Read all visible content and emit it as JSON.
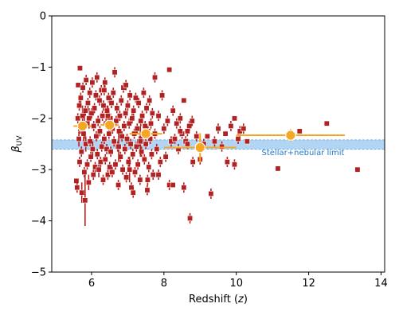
{
  "chart_data": {
    "type": "scatter",
    "xlabel_main": "Redshift (",
    "xlabel_var": "z",
    "xlabel_close": ")",
    "ylabel_main": "β",
    "ylabel_sub": "UV",
    "xlim": [
      4.9,
      14.1
    ],
    "ylim": [
      -5,
      0
    ],
    "xticks": [
      6,
      8,
      10,
      12,
      14
    ],
    "yticks": [
      0,
      -1,
      -2,
      -3,
      -4,
      -5
    ],
    "xtick_labels": [
      "6",
      "8",
      "10",
      "12",
      "14"
    ],
    "ytick_labels": [
      "0",
      "−1",
      "−2",
      "−3",
      "−4",
      "−5"
    ],
    "band": {
      "ymin": -2.6,
      "ymax": -2.42,
      "color": "#9fcaf0",
      "edge": "#5aa3e6"
    },
    "annotation": {
      "text": "Stellar+nebular limit",
      "x": 10.7,
      "y": -2.72,
      "color": "#1f77d0"
    },
    "colors": {
      "individual": "#b22222",
      "binned": "#f5a623"
    },
    "individual_points": [
      [
        5.58,
        -3.22,
        0.05
      ],
      [
        5.6,
        -3.35,
        0.1
      ],
      [
        5.62,
        -2.0,
        0.1
      ],
      [
        5.63,
        -1.35,
        0.05
      ],
      [
        5.65,
        -2.4,
        0.15
      ],
      [
        5.66,
        -1.75,
        0.1
      ],
      [
        5.67,
        -2.85,
        0.1
      ],
      [
        5.68,
        -1.02,
        0.05
      ],
      [
        5.69,
        -2.2,
        0.1
      ],
      [
        5.7,
        -1.6,
        0.1
      ],
      [
        5.72,
        -2.65,
        0.1
      ],
      [
        5.73,
        -3.45,
        0.2
      ],
      [
        5.75,
        -1.95,
        0.2
      ],
      [
        5.76,
        -1.4,
        0.1
      ],
      [
        5.78,
        -2.3,
        0.15
      ],
      [
        5.8,
        -3.05,
        0.1
      ],
      [
        5.82,
        -3.6,
        0.5
      ],
      [
        5.83,
        -1.85,
        0.1
      ],
      [
        5.84,
        -2.5,
        0.15
      ],
      [
        5.85,
        -1.25,
        0.1
      ],
      [
        5.87,
        -2.1,
        0.1
      ],
      [
        5.88,
        -2.9,
        0.1
      ],
      [
        5.9,
        -1.7,
        0.1
      ],
      [
        5.92,
        -3.25,
        0.15
      ],
      [
        5.93,
        -2.0,
        0.2
      ],
      [
        5.95,
        -1.5,
        0.1
      ],
      [
        5.96,
        -2.45,
        0.1
      ],
      [
        5.98,
        -2.75,
        0.1
      ],
      [
        6.0,
        -1.9,
        0.1
      ],
      [
        6.02,
        -1.3,
        0.1
      ],
      [
        6.03,
        -2.6,
        0.15
      ],
      [
        6.05,
        -3.1,
        0.1
      ],
      [
        6.06,
        -2.15,
        0.1
      ],
      [
        6.08,
        -1.8,
        0.1
      ],
      [
        6.1,
        -2.95,
        0.1
      ],
      [
        6.12,
        -1.55,
        0.1
      ],
      [
        6.13,
        -2.35,
        0.1
      ],
      [
        6.15,
        -1.2,
        0.1
      ],
      [
        6.16,
        -2.7,
        0.1
      ],
      [
        6.18,
        -2.05,
        0.1
      ],
      [
        6.2,
        -3.0,
        0.15
      ],
      [
        6.22,
        -1.65,
        0.1
      ],
      [
        6.23,
        -2.25,
        0.1
      ],
      [
        6.25,
        -2.85,
        0.1
      ],
      [
        6.27,
        -1.45,
        0.1
      ],
      [
        6.28,
        -2.55,
        0.1
      ],
      [
        6.3,
        -1.95,
        0.1
      ],
      [
        6.32,
        -3.2,
        0.1
      ],
      [
        6.33,
        -1.75,
        0.1
      ],
      [
        6.35,
        -2.4,
        0.1
      ],
      [
        6.37,
        -1.3,
        0.1
      ],
      [
        6.38,
        -2.8,
        0.1
      ],
      [
        6.4,
        -2.1,
        0.1
      ],
      [
        6.42,
        -2.6,
        0.1
      ],
      [
        6.43,
        -1.85,
        0.1
      ],
      [
        6.45,
        -3.1,
        0.1
      ],
      [
        6.47,
        -1.6,
        0.1
      ],
      [
        6.48,
        -2.3,
        0.1
      ],
      [
        6.5,
        -2.95,
        0.1
      ],
      [
        6.52,
        -2.0,
        0.1
      ],
      [
        6.53,
        -2.65,
        0.1
      ],
      [
        6.55,
        -1.7,
        0.1
      ],
      [
        6.57,
        -3.05,
        0.1
      ],
      [
        6.58,
        -2.2,
        0.1
      ],
      [
        6.6,
        -1.5,
        0.1
      ],
      [
        6.62,
        -2.45,
        0.1
      ],
      [
        6.64,
        -1.1,
        0.1
      ],
      [
        6.66,
        -2.9,
        0.1
      ],
      [
        6.68,
        -2.05,
        0.1
      ],
      [
        6.7,
        -1.8,
        0.1
      ],
      [
        6.72,
        -2.55,
        0.1
      ],
      [
        6.74,
        -3.3,
        0.1
      ],
      [
        6.76,
        -2.25,
        0.1
      ],
      [
        6.78,
        -1.95,
        0.1
      ],
      [
        6.8,
        -2.75,
        0.1
      ],
      [
        6.82,
        -1.65,
        0.1
      ],
      [
        6.84,
        -2.35,
        0.1
      ],
      [
        6.86,
        -3.0,
        0.1
      ],
      [
        6.88,
        -1.4,
        0.1
      ],
      [
        6.9,
        -2.15,
        0.1
      ],
      [
        6.92,
        -2.6,
        0.1
      ],
      [
        6.94,
        -1.9,
        0.1
      ],
      [
        6.96,
        -3.15,
        0.1
      ],
      [
        6.98,
        -2.4,
        0.1
      ],
      [
        7.0,
        -1.75,
        0.1
      ],
      [
        7.02,
        -2.85,
        0.1
      ],
      [
        7.04,
        -2.1,
        0.1
      ],
      [
        7.06,
        -1.55,
        0.1
      ],
      [
        7.08,
        -2.5,
        0.1
      ],
      [
        7.1,
        -3.35,
        0.1
      ],
      [
        7.12,
        -2.0,
        0.1
      ],
      [
        7.14,
        -2.7,
        0.1
      ],
      [
        7.16,
        -1.85,
        0.1
      ],
      [
        7.18,
        -2.3,
        0.1
      ],
      [
        7.2,
        -3.05,
        0.1
      ],
      [
        7.22,
        -1.6,
        0.1
      ],
      [
        7.24,
        -2.55,
        0.1
      ],
      [
        7.26,
        -2.2,
        0.1
      ],
      [
        7.28,
        -2.9,
        0.1
      ],
      [
        7.3,
        -1.7,
        0.1
      ],
      [
        7.32,
        -2.45,
        0.1
      ],
      [
        7.34,
        -3.2,
        0.1
      ],
      [
        7.36,
        -2.05,
        0.1
      ],
      [
        7.38,
        -2.65,
        0.1
      ],
      [
        7.4,
        -1.95,
        0.1
      ],
      [
        7.42,
        -2.35,
        0.1
      ],
      [
        7.44,
        -1.5,
        0.1
      ],
      [
        7.46,
        -2.8,
        0.1
      ],
      [
        7.48,
        -2.15,
        0.1
      ],
      [
        7.5,
        -2.5,
        0.1
      ],
      [
        7.52,
        -1.8,
        0.1
      ],
      [
        7.54,
        -3.4,
        0.1
      ],
      [
        7.56,
        -2.25,
        0.1
      ],
      [
        7.58,
        -2.95,
        0.1
      ],
      [
        7.6,
        -1.65,
        0.1
      ],
      [
        7.62,
        -2.4,
        0.1
      ],
      [
        7.64,
        -2.1,
        0.1
      ],
      [
        7.66,
        -2.7,
        0.1
      ],
      [
        7.68,
        -1.9,
        0.1
      ],
      [
        7.7,
        -3.1,
        0.1
      ],
      [
        7.75,
        -2.3,
        0.1
      ],
      [
        7.8,
        -2.6,
        0.1
      ],
      [
        7.85,
        -1.95,
        0.1
      ],
      [
        7.9,
        -2.85,
        0.1
      ],
      [
        7.95,
        -1.55,
        0.1
      ],
      [
        8.0,
        -2.2,
        0.1
      ],
      [
        8.05,
        -2.75,
        0.1
      ],
      [
        8.1,
        -2.05,
        0.1
      ],
      [
        8.15,
        -3.3,
        0.1
      ],
      [
        8.2,
        -2.45,
        0.1
      ],
      [
        8.25,
        -1.85,
        0.1
      ],
      [
        8.3,
        -2.4,
        0.1
      ],
      [
        8.35,
        -2.1,
        0.1
      ],
      [
        8.4,
        -2.6,
        0.1
      ],
      [
        8.45,
        -2.0,
        0.1
      ],
      [
        8.5,
        -2.3,
        0.1
      ],
      [
        8.55,
        -3.35,
        0.1
      ],
      [
        8.6,
        -2.45,
        0.1
      ],
      [
        8.65,
        -2.25,
        0.1
      ],
      [
        8.7,
        -2.15,
        0.1
      ],
      [
        8.72,
        -3.95,
        0.1
      ],
      [
        8.78,
        -2.05,
        0.1
      ],
      [
        8.8,
        -2.85,
        0.1
      ],
      [
        8.9,
        -2.35,
        0.1
      ],
      [
        9.0,
        -2.8,
        0.1
      ],
      [
        9.1,
        -2.5,
        0.1
      ],
      [
        9.3,
        -3.47,
        0.1
      ],
      [
        9.4,
        -2.45,
        0.1
      ],
      [
        9.5,
        -2.2,
        0.1
      ],
      [
        9.6,
        -2.55,
        0.1
      ],
      [
        9.75,
        -2.85,
        0.1
      ],
      [
        9.85,
        -2.15,
        0.1
      ],
      [
        9.95,
        -2.9,
        0.1
      ],
      [
        10.05,
        -2.4,
        0.1
      ],
      [
        10.1,
        -2.25,
        0.1
      ],
      [
        10.2,
        -2.2,
        0.1
      ],
      [
        11.15,
        -2.98,
        0.05
      ],
      [
        11.75,
        -2.25,
        0.05
      ],
      [
        12.5,
        -2.1,
        0.05
      ],
      [
        13.35,
        -3.0,
        0.05
      ],
      [
        5.8,
        -2.15,
        0.25
      ],
      [
        6.45,
        -1.95,
        0.2
      ],
      [
        6.75,
        -2.55,
        0.3
      ],
      [
        7.35,
        -2.45,
        0.3
      ],
      [
        7.05,
        -3.0,
        0.25
      ],
      [
        8.55,
        -1.65,
        0.05
      ],
      [
        8.15,
        -1.05,
        0.05
      ],
      [
        7.75,
        -1.2,
        0.1
      ],
      [
        6.95,
        -1.35,
        0.1
      ],
      [
        6.35,
        -1.45,
        0.1
      ],
      [
        7.15,
        -3.45,
        0.1
      ],
      [
        7.55,
        -3.2,
        0.1
      ],
      [
        7.85,
        -3.1,
        0.1
      ],
      [
        8.25,
        -3.3,
        0.05
      ],
      [
        8.45,
        -2.25,
        0.1
      ],
      [
        8.65,
        -2.5,
        0.1
      ],
      [
        9.2,
        -2.35,
        0.05
      ],
      [
        9.7,
        -2.3,
        0.05
      ],
      [
        9.95,
        -2.0,
        0.05
      ],
      [
        10.3,
        -2.45,
        0.05
      ]
    ],
    "binned_points": [
      {
        "x": 5.75,
        "y": -2.15,
        "xerr": 0.25,
        "yerr": 0.08
      },
      {
        "x": 6.5,
        "y": -2.13,
        "xerr": 0.25,
        "yerr": 0.08
      },
      {
        "x": 7.5,
        "y": -2.3,
        "xerr": 0.45,
        "yerr": 0.08
      },
      {
        "x": 9.0,
        "y": -2.57,
        "xerr": 1.0,
        "yerr": 0.28
      },
      {
        "x": 11.5,
        "y": -2.33,
        "xerr": 1.5,
        "yerr": 0.12
      }
    ]
  }
}
